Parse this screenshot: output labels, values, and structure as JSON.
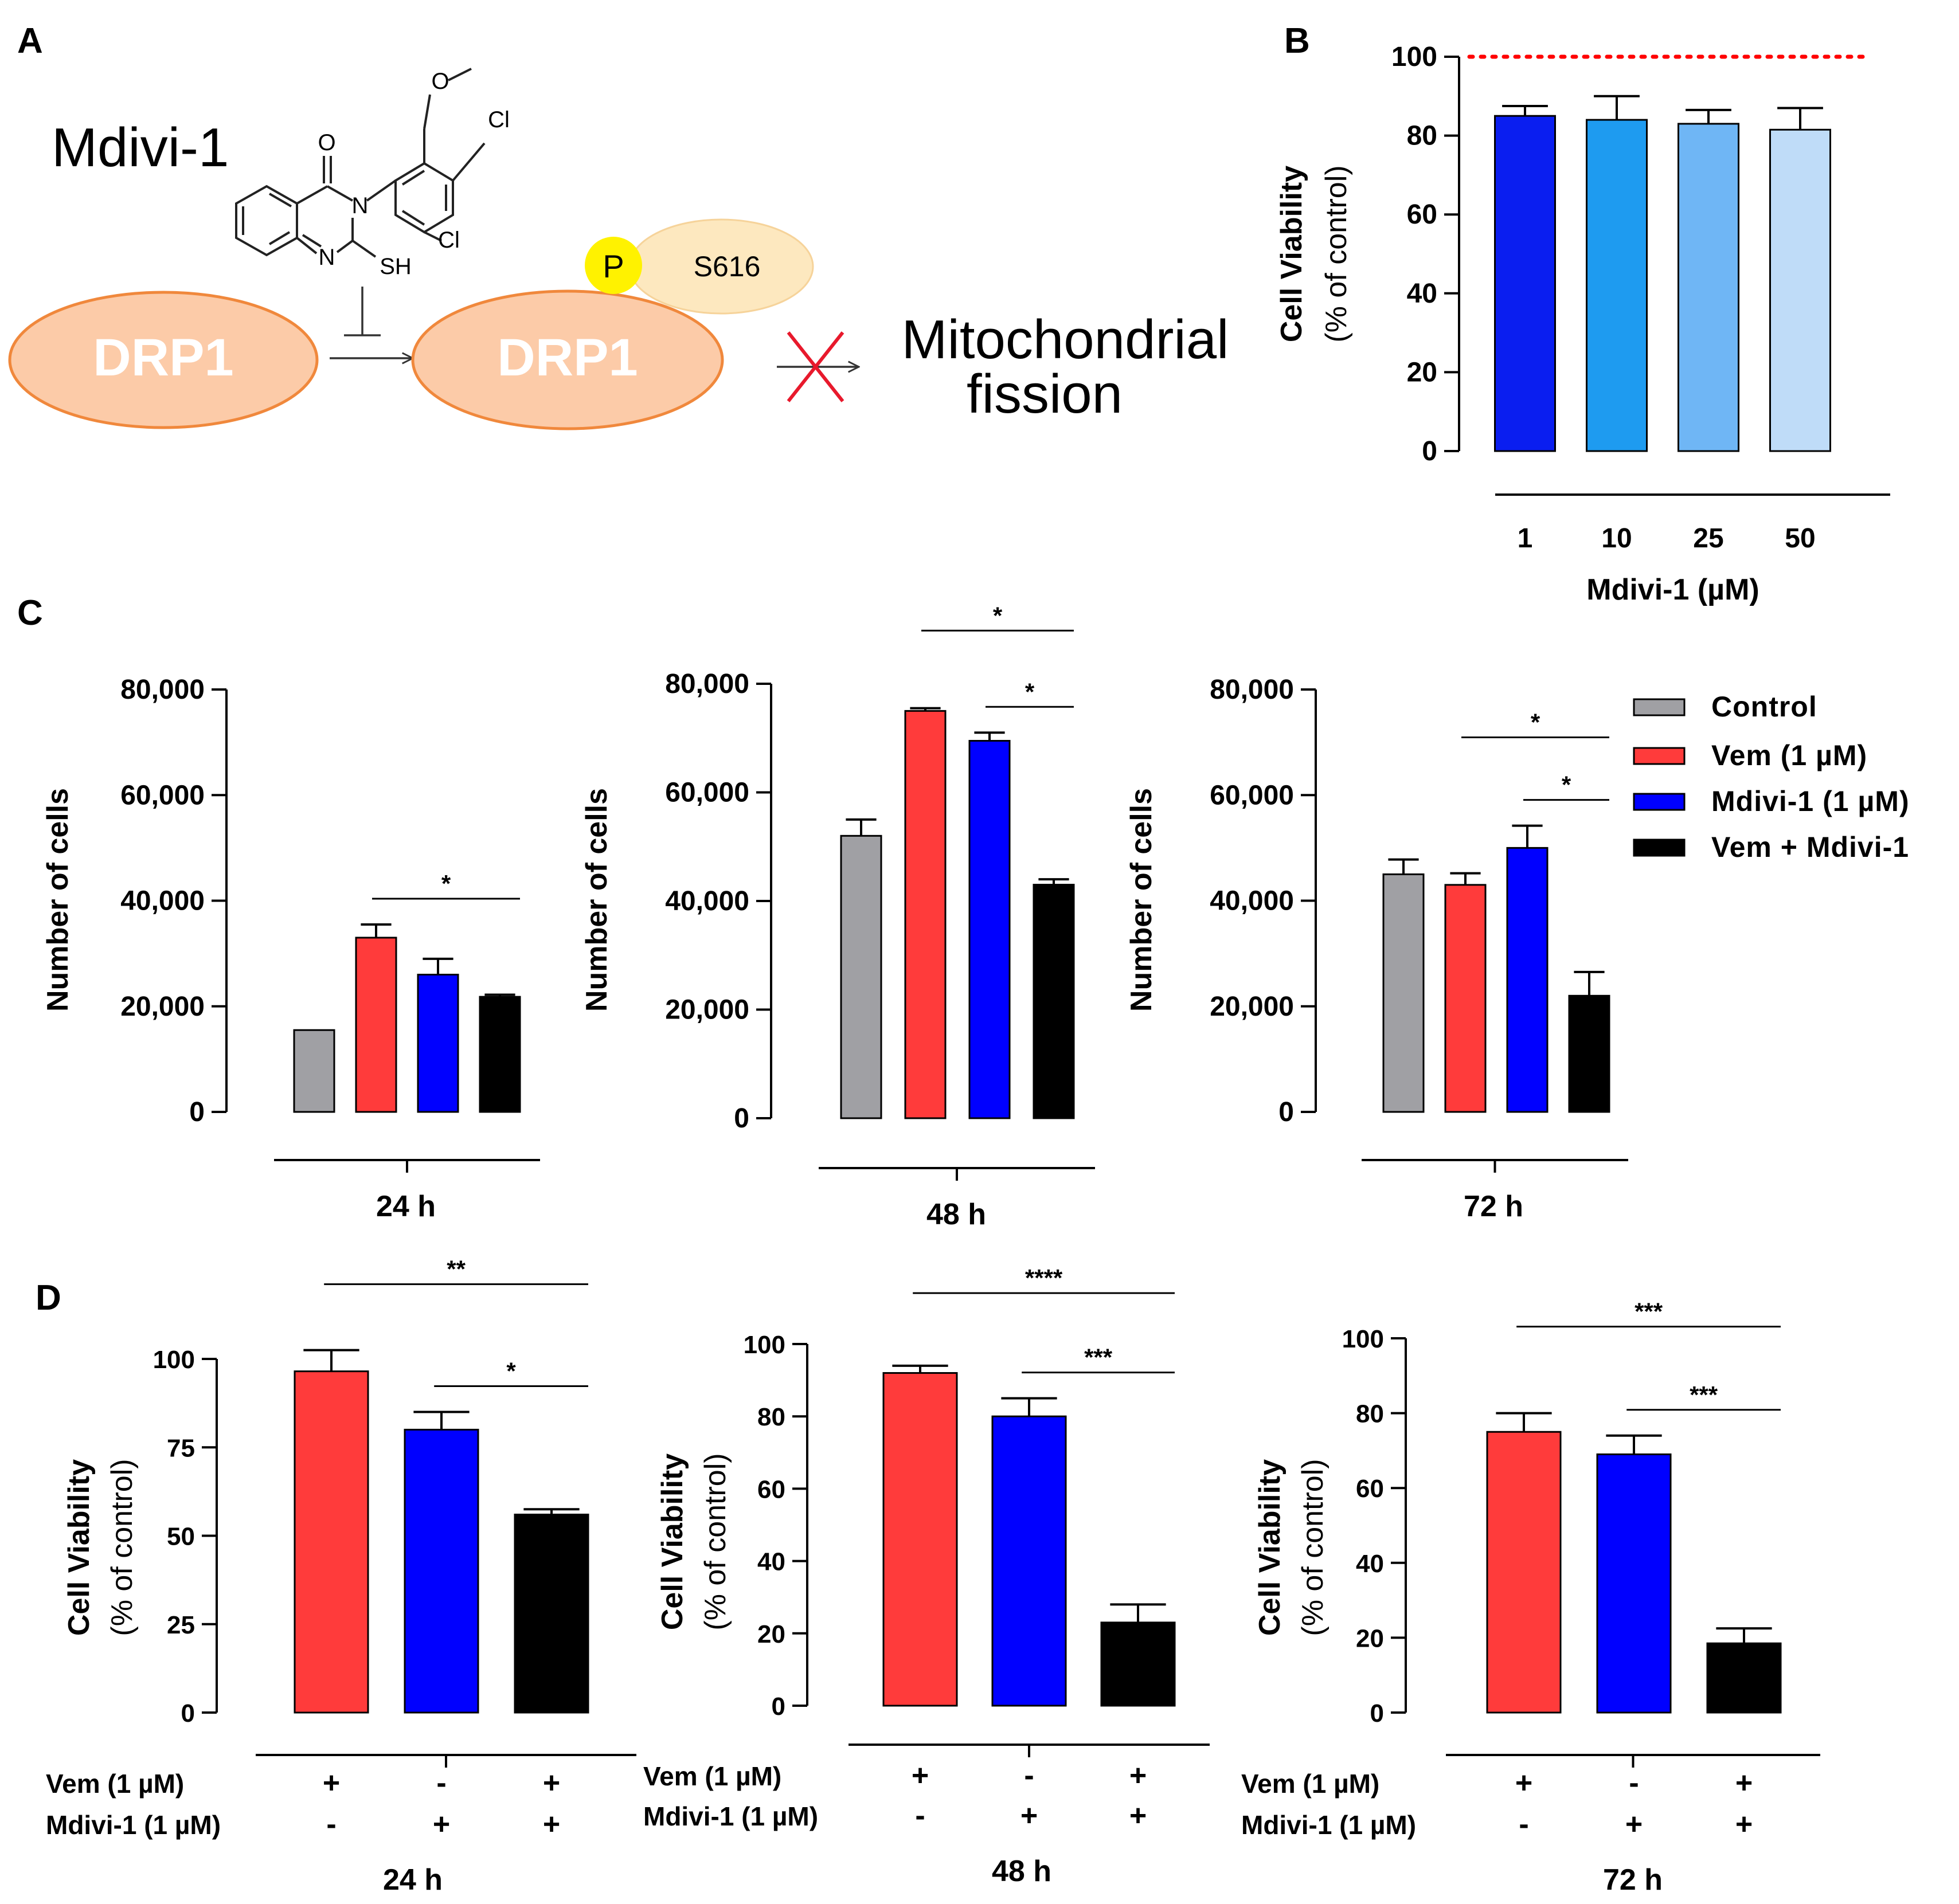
{
  "panels": {
    "a": "A",
    "b": "B",
    "c": "C",
    "d": "D"
  },
  "diagram": {
    "drug_name": "Mdivi-1",
    "protein_1": "DRP1",
    "protein_2": "DRP1",
    "phospho": "P",
    "site": "S616",
    "outcome_line1": "Mitochondrial",
    "outcome_line2": "fission",
    "atoms": {
      "o_carbonyl": "O",
      "n3": "N",
      "n1": "N",
      "sh": "SH",
      "o_methoxy": "O",
      "cl_top": "Cl",
      "cl_bottom": "Cl"
    },
    "colors": {
      "drp1_fill": "#FCCBA8",
      "drp1_stroke": "#F0883C",
      "p_fill": "#FFF200",
      "s616_fill": "#FDE8BF",
      "block_x": "#E8192C"
    }
  },
  "chart_data": [
    {
      "id": "B",
      "type": "bar",
      "title": "",
      "ylabel": "Cell Viability",
      "ylabel2": "(% of control)",
      "xlabel": "Mdivi-1 (µM)",
      "ylim": [
        0,
        100
      ],
      "yticks": [
        "0",
        "20",
        "40",
        "60",
        "80",
        "100"
      ],
      "categories": [
        "1",
        "10",
        "25",
        "50"
      ],
      "values": [
        85,
        84,
        83,
        81.5
      ],
      "errors": [
        2.5,
        6,
        3.5,
        5.5
      ],
      "colors": [
        "#0A1EF0",
        "#1E9BF0",
        "#6FB6F5",
        "#BFDCF8"
      ],
      "reference_line": {
        "value": 100,
        "color": "#FF0000",
        "style": "dotted"
      }
    },
    {
      "id": "C-24h",
      "type": "bar",
      "group_label": "24 h",
      "ylabel": "Number of cells",
      "ylim": [
        0,
        80000
      ],
      "yticks": [
        "0",
        "20,000",
        "40,000",
        "60,000",
        "80,000"
      ],
      "categories": [
        "Control",
        "Vem (1 µM)",
        "Mdivi-1 (1 µM)",
        "Vem + Mdivi-1"
      ],
      "values": [
        15500,
        33000,
        26000,
        21800
      ],
      "errors": [
        0,
        2500,
        3000,
        400
      ],
      "colors": [
        "#A0A0A4",
        "#FF3B3B",
        "#0000FF",
        "#000000"
      ],
      "significance": [
        {
          "from": 1,
          "to": 3,
          "label": "*"
        }
      ]
    },
    {
      "id": "C-48h",
      "type": "bar",
      "group_label": "48 h",
      "ylabel": "Number of cells",
      "ylim": [
        0,
        80000
      ],
      "yticks": [
        "0",
        "20,000",
        "40,000",
        "60,000",
        "80,000"
      ],
      "categories": [
        "Control",
        "Vem (1 µM)",
        "Mdivi-1 (1 µM)",
        "Vem + Mdivi-1"
      ],
      "values": [
        52000,
        75000,
        69500,
        43000
      ],
      "errors": [
        3000,
        500,
        1500,
        1000
      ],
      "colors": [
        "#A0A0A4",
        "#FF3B3B",
        "#0000FF",
        "#000000"
      ],
      "significance": [
        {
          "from": 1,
          "to": 3,
          "label": "*"
        },
        {
          "from": 2,
          "to": 3,
          "label": "*"
        }
      ]
    },
    {
      "id": "C-72h",
      "type": "bar",
      "group_label": "72 h",
      "ylabel": "Number of cells",
      "ylim": [
        0,
        80000
      ],
      "yticks": [
        "0",
        "20,000",
        "40,000",
        "60,000",
        "80,000"
      ],
      "categories": [
        "Control",
        "Vem (1 µM)",
        "Mdivi-1 (1 µM)",
        "Vem + Mdivi-1"
      ],
      "values": [
        45000,
        43000,
        50000,
        22000
      ],
      "errors": [
        2800,
        2200,
        4200,
        4500
      ],
      "colors": [
        "#A0A0A4",
        "#FF3B3B",
        "#0000FF",
        "#000000"
      ],
      "significance": [
        {
          "from": 1,
          "to": 3,
          "label": "*"
        },
        {
          "from": 2,
          "to": 3,
          "label": "*"
        }
      ]
    },
    {
      "id": "D-24h",
      "type": "bar",
      "group_label": "24 h",
      "ylabel": "Cell Viability",
      "ylabel2": "(% of control)",
      "ylim": [
        0,
        100
      ],
      "yticks": [
        "0",
        "25",
        "50",
        "75",
        "100"
      ],
      "values": [
        96.5,
        80,
        56
      ],
      "errors": [
        6,
        5,
        1.5
      ],
      "colors": [
        "#FF3B3B",
        "#0000FF",
        "#000000"
      ],
      "treatment_rows": [
        {
          "label": "Vem (1 µM)",
          "marks": [
            "+",
            "-",
            "+"
          ]
        },
        {
          "label": "Mdivi-1 (1 µM)",
          "marks": [
            "-",
            "+",
            "+"
          ]
        }
      ],
      "significance": [
        {
          "from": 0,
          "to": 2,
          "label": "**"
        },
        {
          "from": 1,
          "to": 2,
          "label": "*"
        }
      ]
    },
    {
      "id": "D-48h",
      "type": "bar",
      "group_label": "48 h",
      "ylabel": "Cell Viability",
      "ylabel2": "(% of control)",
      "ylim": [
        0,
        100
      ],
      "yticks": [
        "0",
        "20",
        "40",
        "60",
        "80",
        "100"
      ],
      "values": [
        92,
        80,
        23
      ],
      "errors": [
        2,
        5,
        5
      ],
      "colors": [
        "#FF3B3B",
        "#0000FF",
        "#000000"
      ],
      "treatment_rows": [
        {
          "label": "Vem (1 µM)",
          "marks": [
            "+",
            "-",
            "+"
          ]
        },
        {
          "label": "Mdivi-1 (1 µM)",
          "marks": [
            "-",
            "+",
            "+"
          ]
        }
      ],
      "significance": [
        {
          "from": 0,
          "to": 2,
          "label": "****"
        },
        {
          "from": 1,
          "to": 2,
          "label": "***"
        }
      ]
    },
    {
      "id": "D-72h",
      "type": "bar",
      "group_label": "72 h",
      "ylabel": "Cell Viability",
      "ylabel2": "(% of control)",
      "ylim": [
        0,
        100
      ],
      "yticks": [
        "0",
        "20",
        "40",
        "60",
        "80",
        "100"
      ],
      "values": [
        75,
        69,
        18.5
      ],
      "errors": [
        5,
        5,
        4
      ],
      "colors": [
        "#FF3B3B",
        "#0000FF",
        "#000000"
      ],
      "treatment_rows": [
        {
          "label": "Vem (1 µM)",
          "marks": [
            "+",
            "-",
            "+"
          ]
        },
        {
          "label": "Mdivi-1 (1 µM)",
          "marks": [
            "-",
            "+",
            "+"
          ]
        }
      ],
      "significance": [
        {
          "from": 0,
          "to": 2,
          "label": "***"
        },
        {
          "from": 1,
          "to": 2,
          "label": "***"
        }
      ]
    }
  ]
}
